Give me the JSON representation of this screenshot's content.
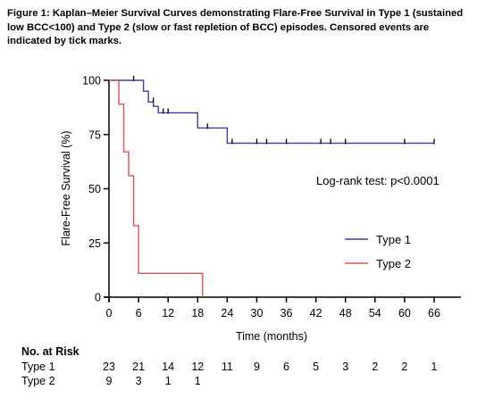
{
  "caption": "Figure 1: Kaplan–Meier Survival Curves demonstrating Flare-Free Survival in Type 1 (sustained low BCC<100) and Type 2 (slow or fast repletion of BCC) episodes. Censored events are indicated by tick marks.",
  "chart_data": {
    "type": "line",
    "title": "",
    "xlabel": "Time (months)",
    "ylabel": "Flare-Free Survival (%)",
    "xlim": [
      0,
      66
    ],
    "ylim": [
      0,
      100
    ],
    "xticks": [
      0,
      6,
      12,
      18,
      24,
      30,
      36,
      42,
      48,
      54,
      60,
      66
    ],
    "yticks": [
      0,
      25,
      50,
      75,
      100
    ],
    "grid": false,
    "legend_position": "right",
    "annotation": "Log-rank test: p<0.0001",
    "series": [
      {
        "name": "Type 1",
        "color": "#3d3db3",
        "step_x": [
          0,
          7,
          8,
          9,
          10,
          18,
          24,
          66
        ],
        "step_y": [
          100,
          95,
          90,
          88,
          85,
          78,
          71,
          71
        ],
        "censored": [
          {
            "x": 5,
            "y": 100
          },
          {
            "x": 9,
            "y": 90
          },
          {
            "x": 11,
            "y": 85
          },
          {
            "x": 12,
            "y": 85
          },
          {
            "x": 20,
            "y": 78
          },
          {
            "x": 25,
            "y": 71
          },
          {
            "x": 30,
            "y": 71
          },
          {
            "x": 32,
            "y": 71
          },
          {
            "x": 36,
            "y": 71
          },
          {
            "x": 43,
            "y": 71
          },
          {
            "x": 45,
            "y": 71
          },
          {
            "x": 48,
            "y": 71
          },
          {
            "x": 60,
            "y": 71
          },
          {
            "x": 66,
            "y": 71
          }
        ]
      },
      {
        "name": "Type 2",
        "color": "#e0504c",
        "step_x": [
          0,
          2,
          3,
          4,
          5,
          6,
          19
        ],
        "step_y": [
          100,
          89,
          67,
          56,
          33,
          11,
          0
        ],
        "censored": []
      }
    ]
  },
  "risk_table": {
    "title": "No. at Risk",
    "times": [
      0,
      6,
      12,
      18,
      24,
      30,
      36,
      42,
      48,
      54,
      60,
      66
    ],
    "rows": [
      {
        "label": "Type 1",
        "values": [
          "23",
          "21",
          "14",
          "12",
          "11",
          "9",
          "6",
          "5",
          "3",
          "2",
          "2",
          "1"
        ]
      },
      {
        "label": "Type 2",
        "values": [
          "9",
          "3",
          "1",
          "1"
        ]
      }
    ]
  }
}
